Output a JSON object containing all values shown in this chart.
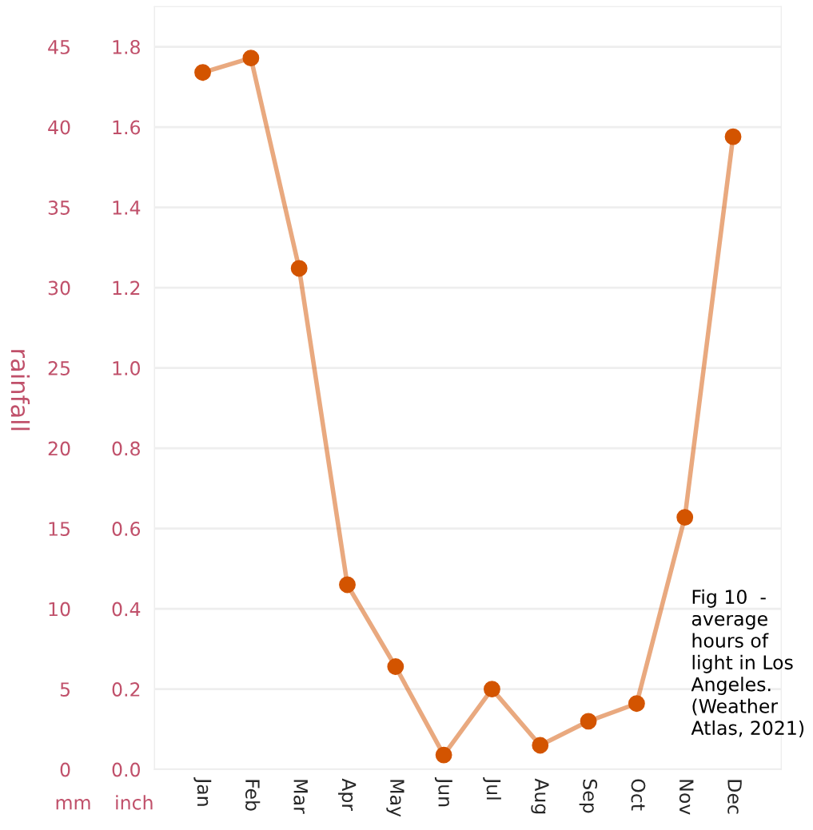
{
  "chart_data": {
    "type": "line",
    "ylabel": "rainfall",
    "categories": [
      "Jan",
      "Feb",
      "Mar",
      "Apr",
      "May",
      "Jun",
      "Jul",
      "Aug",
      "Sep",
      "Oct",
      "Nov",
      "Dec"
    ],
    "series": [
      {
        "color": "#d35400",
        "values": [
          43.4,
          44.3,
          31.2,
          11.5,
          6.4,
          0.9,
          5.0,
          1.5,
          3.0,
          4.1,
          15.7,
          39.4
        ]
      }
    ],
    "ylim": [
      0,
      47.5
    ],
    "yticks": [
      0,
      5,
      10,
      15,
      20,
      25,
      30,
      35,
      40,
      45
    ],
    "y2lim": [
      0,
      1.9
    ],
    "y2ticks": [
      {
        "value": 0,
        "label": "0.0"
      },
      {
        "value": 0.2,
        "label": "0.2"
      },
      {
        "value": 0.4,
        "label": "0.4"
      },
      {
        "value": 0.6,
        "label": "0.6"
      },
      {
        "value": 0.8,
        "label": "0.8"
      },
      {
        "value": 1.0,
        "label": "1.0"
      },
      {
        "value": 1.2,
        "label": "1.2"
      },
      {
        "value": 1.4,
        "label": "1.4"
      },
      {
        "value": 1.6,
        "label": "1.6"
      },
      {
        "value": 1.8,
        "label": "1.8"
      }
    ],
    "grid": "y",
    "marker": "circle",
    "line_style": "solid",
    "annotations": [
      "mm",
      "inch",
      "Fig 10  -\naverage\nhours of\nlight in Los\nAngeles.\n(Weather\nAtlas, 2021)"
    ]
  }
}
